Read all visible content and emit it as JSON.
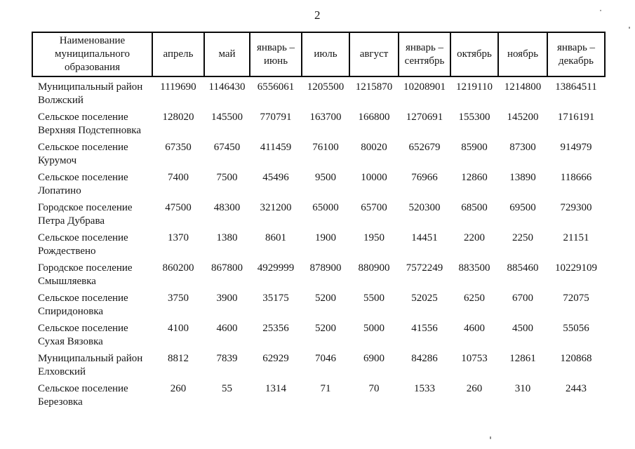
{
  "page": {
    "number": "2"
  },
  "table": {
    "columns": [
      {
        "label": "Наименование муниципального образования"
      },
      {
        "label": "апрель"
      },
      {
        "label": "май"
      },
      {
        "label": "январь – июнь"
      },
      {
        "label": "июль"
      },
      {
        "label": "август"
      },
      {
        "label": "январь – сентябрь"
      },
      {
        "label": "октябрь"
      },
      {
        "label": "ноябрь"
      },
      {
        "label": "январь – декабрь"
      }
    ],
    "rows": [
      {
        "name": "Муниципальный район Волжский",
        "values": [
          "1119690",
          "1146430",
          "6556061",
          "1205500",
          "1215870",
          "10208901",
          "1219110",
          "1214800",
          "13864511"
        ]
      },
      {
        "name": "Сельское поселение Верхняя Подстепновка",
        "values": [
          "128020",
          "145500",
          "770791",
          "163700",
          "166800",
          "1270691",
          "155300",
          "145200",
          "1716191"
        ]
      },
      {
        "name": "Сельское поселение Курумоч",
        "values": [
          "67350",
          "67450",
          "411459",
          "76100",
          "80020",
          "652679",
          "85900",
          "87300",
          "914979"
        ]
      },
      {
        "name": "Сельское поселение Лопатино",
        "values": [
          "7400",
          "7500",
          "45496",
          "9500",
          "10000",
          "76966",
          "12860",
          "13890",
          "118666"
        ]
      },
      {
        "name": "Городское поселение Петра Дубрава",
        "values": [
          "47500",
          "48300",
          "321200",
          "65000",
          "65700",
          "520300",
          "68500",
          "69500",
          "729300"
        ]
      },
      {
        "name": "Сельское поселение Рождествено",
        "values": [
          "1370",
          "1380",
          "8601",
          "1900",
          "1950",
          "14451",
          "2200",
          "2250",
          "21151"
        ]
      },
      {
        "name": "Городское поселение Смышляевка",
        "values": [
          "860200",
          "867800",
          "4929999",
          "878900",
          "880900",
          "7572249",
          "883500",
          "885460",
          "10229109"
        ]
      },
      {
        "name": "Сельское поселение Спиридоновка",
        "values": [
          "3750",
          "3900",
          "35175",
          "5200",
          "5500",
          "52025",
          "6250",
          "6700",
          "72075"
        ]
      },
      {
        "name": "Сельское поселение Сухая Вязовка",
        "values": [
          "4100",
          "4600",
          "25356",
          "5200",
          "5000",
          "41556",
          "4600",
          "4500",
          "55056"
        ]
      },
      {
        "name": "Муниципальный район Елховский",
        "values": [
          "8812",
          "7839",
          "62929",
          "7046",
          "6900",
          "84286",
          "10753",
          "12861",
          "120868"
        ]
      },
      {
        "name": "Сельское поселение Березовка",
        "values": [
          "260",
          "55",
          "1314",
          "71",
          "70",
          "1533",
          "260",
          "310",
          "2443"
        ]
      }
    ]
  }
}
